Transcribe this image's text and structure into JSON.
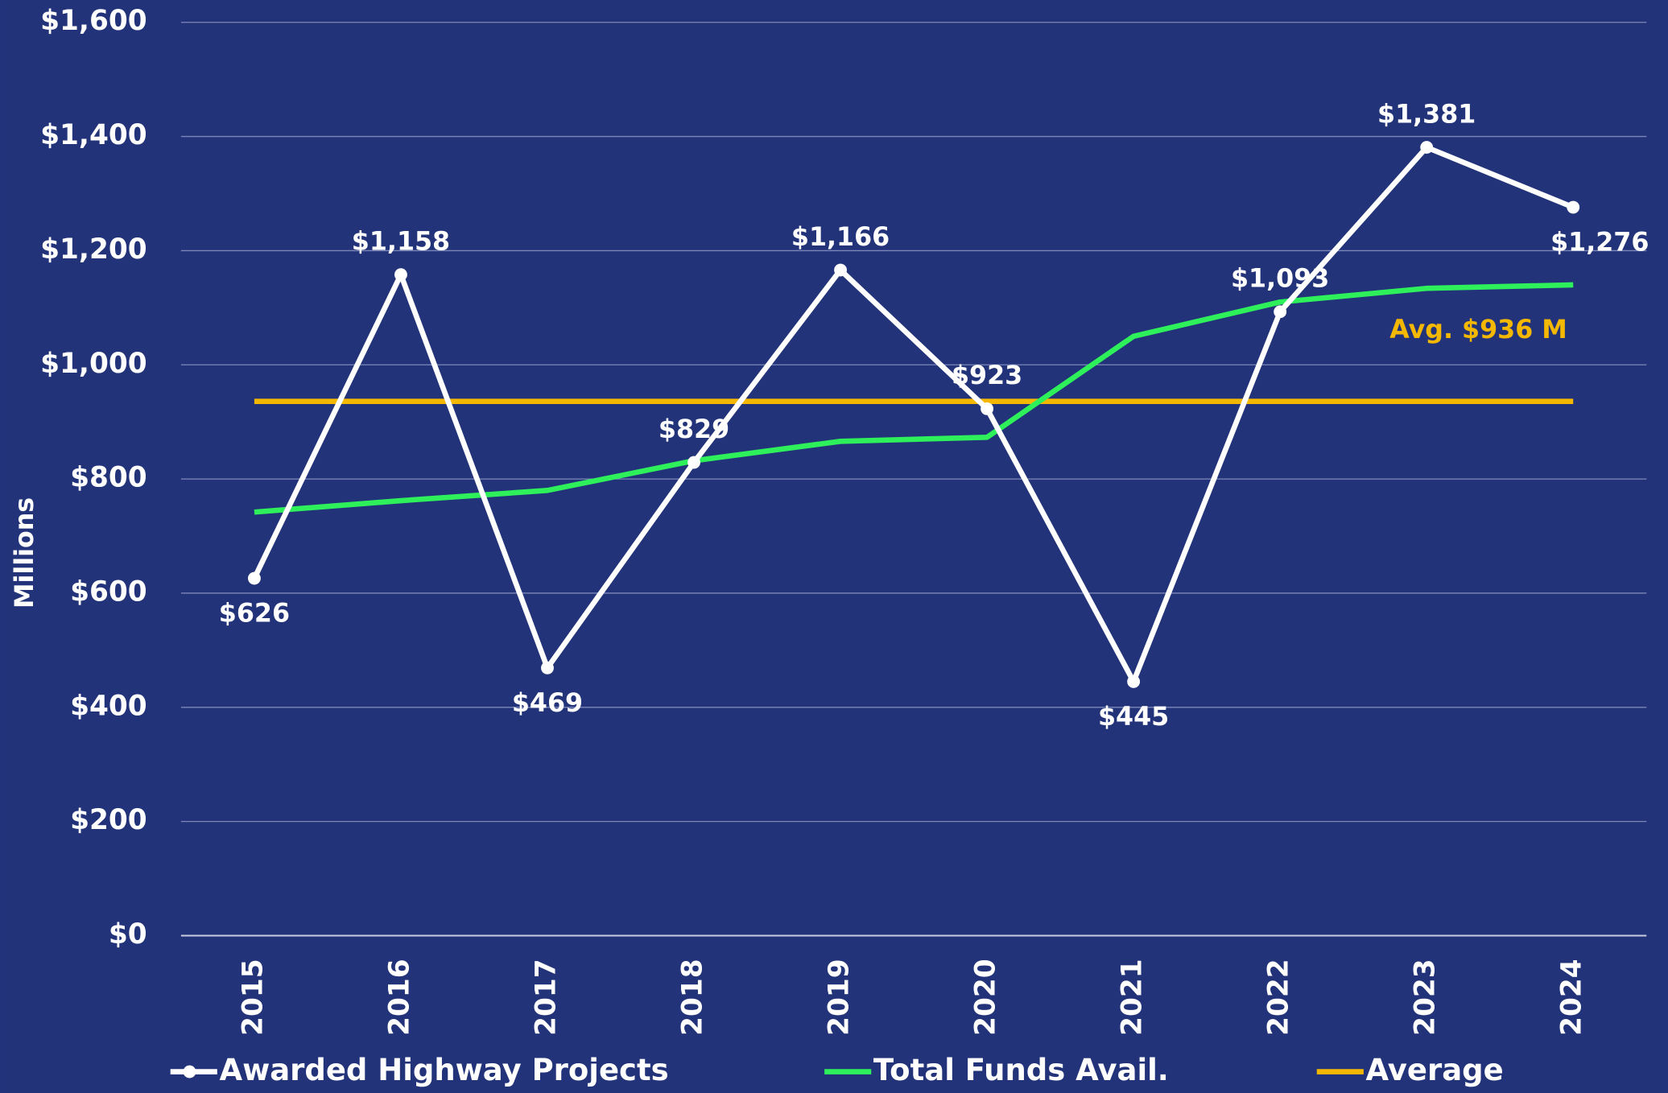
{
  "chart_data": {
    "type": "line",
    "y_label": "Millions",
    "categories": [
      "2015",
      "2016",
      "2017",
      "2018",
      "2019",
      "2020",
      "2021",
      "2022",
      "2023",
      "2024"
    ],
    "series": [
      {
        "name": "Awarded Highway Projects",
        "color": "#ffffff",
        "marker": "circle",
        "values": [
          626,
          1158,
          469,
          829,
          1166,
          923,
          445,
          1093,
          1381,
          1276
        ],
        "value_labels": [
          "$626",
          "$1,158",
          "$469",
          "$829",
          "$1,166",
          "$923",
          "$445",
          "$1,093",
          "$1,381",
          "$1,276"
        ]
      },
      {
        "name": "Total Funds Avail.",
        "color": "#2ef05a",
        "values": [
          742,
          762,
          780,
          832,
          866,
          873,
          1050,
          1110,
          1134,
          1140
        ]
      },
      {
        "name": "Average",
        "color": "#f5b800",
        "values": [
          936,
          936,
          936,
          936,
          936,
          936,
          936,
          936,
          936,
          936
        ]
      }
    ],
    "annotation": "Avg. $936 M",
    "ylim": [
      0,
      1600
    ],
    "yticks": [
      {
        "value": 0,
        "label": "$0"
      },
      {
        "value": 200,
        "label": "$200"
      },
      {
        "value": 400,
        "label": "$400"
      },
      {
        "value": 600,
        "label": "$600"
      },
      {
        "value": 800,
        "label": "$800"
      },
      {
        "value": 1000,
        "label": "$1,000"
      },
      {
        "value": 1200,
        "label": "$1,200"
      },
      {
        "value": 1400,
        "label": "$1,400"
      },
      {
        "value": 1600,
        "label": "$1,600"
      }
    ],
    "grid": true,
    "legend": "bottom"
  }
}
